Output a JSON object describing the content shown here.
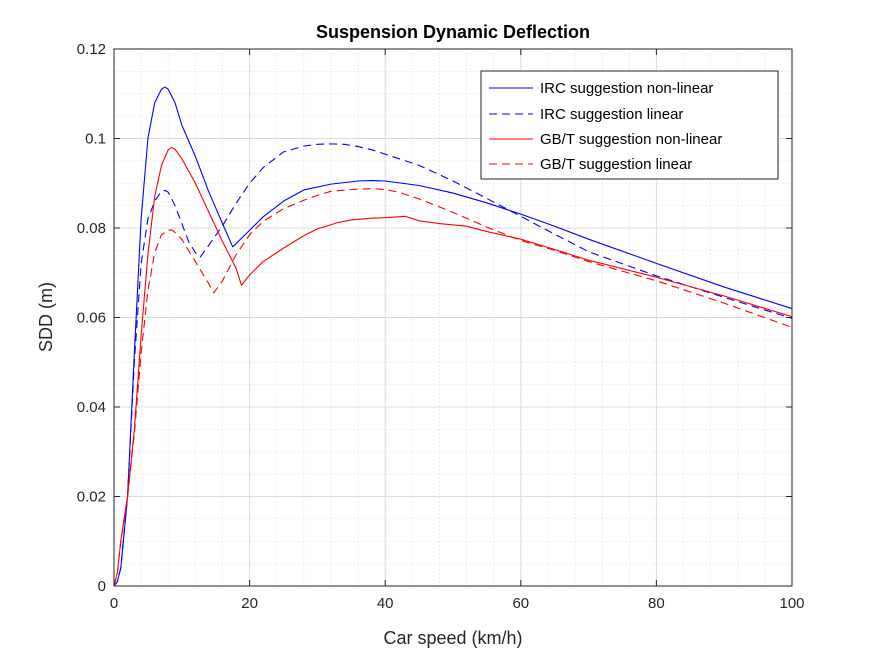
{
  "chart_data": {
    "type": "line",
    "title": "Suspension Dynamic Deflection",
    "xlabel": "Car speed (km/h)",
    "ylabel": "SDD (m)",
    "xlim": [
      0,
      100
    ],
    "ylim": [
      0,
      0.12
    ],
    "xticks": [
      0,
      20,
      40,
      60,
      80,
      100
    ],
    "xtick_labels": [
      "0",
      "20",
      "40",
      "60",
      "80",
      "100"
    ],
    "yticks": [
      0,
      0.02,
      0.04,
      0.06,
      0.08,
      0.1,
      0.12
    ],
    "ytick_labels": [
      "0",
      "0.02",
      "0.04",
      "0.06",
      "0.08",
      "0.1",
      "0.12"
    ],
    "grid": "major and minor (dotted)",
    "legend_position": "top-right",
    "series": [
      {
        "name": "IRC suggestion non-linear",
        "color": "#0000ff",
        "style": "solid",
        "x": [
          0,
          0.5,
          1,
          2,
          3,
          4,
          5,
          6,
          7,
          7.5,
          8,
          9,
          10,
          12,
          14,
          16,
          17.5,
          18,
          20,
          22,
          25,
          28,
          32,
          36,
          38,
          40,
          45,
          50,
          55,
          60,
          65,
          70,
          80,
          90,
          100
        ],
        "y": [
          0,
          0.001,
          0.004,
          0.02,
          0.052,
          0.082,
          0.1,
          0.108,
          0.111,
          0.1115,
          0.111,
          0.108,
          0.103,
          0.096,
          0.088,
          0.081,
          0.0758,
          0.0765,
          0.0795,
          0.0825,
          0.086,
          0.0885,
          0.0898,
          0.0905,
          0.0906,
          0.0905,
          0.0895,
          0.0878,
          0.0856,
          0.0831,
          0.0804,
          0.0775,
          0.0721,
          0.0668,
          0.062
        ]
      },
      {
        "name": "IRC suggestion linear",
        "color": "#0000ff",
        "style": "dashed",
        "x": [
          0,
          0.5,
          1,
          2,
          3,
          4,
          5,
          6,
          7,
          7.5,
          8,
          9,
          10,
          11,
          12,
          12.7,
          14,
          16,
          18,
          20,
          22,
          25,
          28,
          30,
          32,
          34,
          36,
          38,
          40,
          45,
          50,
          55,
          60,
          65,
          70,
          80,
          90,
          100
        ],
        "y": [
          0,
          0.001,
          0.004,
          0.02,
          0.05,
          0.072,
          0.082,
          0.086,
          0.0882,
          0.0884,
          0.088,
          0.085,
          0.081,
          0.077,
          0.0745,
          0.0735,
          0.0762,
          0.0805,
          0.0855,
          0.09,
          0.0935,
          0.097,
          0.0983,
          0.0987,
          0.0988,
          0.0987,
          0.0982,
          0.0975,
          0.0965,
          0.094,
          0.0905,
          0.0866,
          0.0826,
          0.0786,
          0.0747,
          0.0693,
          0.0645,
          0.0598
        ]
      },
      {
        "name": "GB/T suggestion non-linear",
        "color": "#ff0000",
        "style": "solid",
        "x": [
          0,
          0.5,
          1,
          2,
          3,
          4,
          5,
          6,
          7,
          8,
          8.5,
          9,
          10,
          12,
          14,
          16,
          18,
          18.8,
          20,
          22,
          25,
          28,
          30,
          33,
          35,
          38,
          40,
          43,
          45,
          48,
          52,
          55,
          60,
          65,
          70,
          80,
          90,
          100
        ],
        "y": [
          0,
          0.003,
          0.01,
          0.02,
          0.035,
          0.056,
          0.074,
          0.087,
          0.094,
          0.0975,
          0.098,
          0.0976,
          0.0955,
          0.09,
          0.0835,
          0.077,
          0.071,
          0.0672,
          0.0695,
          0.0725,
          0.0755,
          0.0783,
          0.0798,
          0.0812,
          0.0818,
          0.0822,
          0.0823,
          0.0826,
          0.0816,
          0.081,
          0.0804,
          0.0792,
          0.0775,
          0.0752,
          0.0728,
          0.069,
          0.0648,
          0.0602
        ]
      },
      {
        "name": "GB/T suggestion linear",
        "color": "#ff0000",
        "style": "dashed",
        "x": [
          0,
          0.5,
          1,
          2,
          3,
          4,
          5,
          6,
          7,
          8,
          8.5,
          9,
          10,
          12,
          14,
          14.7,
          16,
          18,
          20,
          22,
          25,
          28,
          30,
          32,
          35,
          38,
          40,
          42,
          45,
          50,
          55,
          60,
          65,
          70,
          80,
          90,
          100
        ],
        "y": [
          0,
          0.003,
          0.01,
          0.02,
          0.034,
          0.052,
          0.066,
          0.0745,
          0.0785,
          0.0795,
          0.0796,
          0.079,
          0.0775,
          0.0725,
          0.0675,
          0.0655,
          0.0682,
          0.074,
          0.0785,
          0.0815,
          0.0843,
          0.0862,
          0.0873,
          0.0882,
          0.0886,
          0.0888,
          0.0886,
          0.088,
          0.0865,
          0.0835,
          0.0802,
          0.0772,
          0.075,
          0.0725,
          0.0682,
          0.0632,
          0.0578
        ]
      }
    ]
  }
}
